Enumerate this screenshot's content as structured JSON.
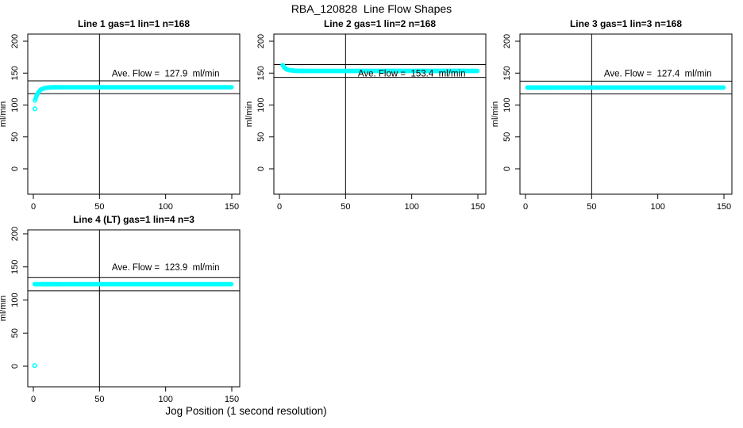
{
  "figure": {
    "title": "RBA_120828  Line Flow Shapes",
    "xlabel": "Jog Position (1 second resolution)",
    "background": "#ffffff",
    "axis_color": "#000000",
    "point_color": "#00ffff"
  },
  "chart_data": {
    "type": "scatter",
    "title": "RBA_120828  Line Flow Shapes",
    "xlabel": "Jog Position (1 second resolution)",
    "ylabel": "ml/min",
    "x_ticks": [
      0,
      50,
      100,
      150
    ],
    "y_ticks": [
      0,
      50,
      100,
      150,
      200
    ],
    "xlim": [
      0,
      150
    ],
    "ylim": [
      0,
      200
    ],
    "grid": false,
    "marker": "open-circle",
    "marker_color": "#00ffff",
    "vline_x": 50,
    "panels": [
      {
        "title": "Line 1 gas=1 lin=1 n=168",
        "n": 168,
        "ave_flow": 127.9,
        "annotation": "Ave. Flow =  127.9  ml/min",
        "annotation_at": [
          100,
          150
        ],
        "ref_lines_y": [
          137.9,
          117.9
        ],
        "profile": [
          [
            1.2,
            107
          ],
          [
            2,
            112
          ],
          [
            3,
            117
          ],
          [
            4,
            120.5
          ],
          [
            5,
            123
          ],
          [
            6,
            124.5
          ],
          [
            8,
            126.2
          ],
          [
            10,
            127
          ],
          [
            13,
            127.6
          ],
          [
            16,
            127.9
          ],
          [
            150,
            127.9
          ]
        ],
        "outlier_points": [
          [
            1.2,
            94
          ]
        ]
      },
      {
        "title": "Line 2 gas=1 lin=2 n=168",
        "n": 168,
        "ave_flow": 153.4,
        "annotation": "Ave. Flow =  153.4  ml/min",
        "annotation_at": [
          100,
          150
        ],
        "ref_lines_y": [
          163.4,
          143.4
        ],
        "profile": [
          [
            2.5,
            162.5
          ],
          [
            4,
            158
          ],
          [
            6,
            155.5
          ],
          [
            8,
            154.5
          ],
          [
            10,
            154
          ],
          [
            13,
            153.6
          ],
          [
            16,
            153.4
          ],
          [
            150,
            153.4
          ]
        ],
        "outlier_points": []
      },
      {
        "title": "Line 3 gas=1 lin=3 n=168",
        "n": 168,
        "ave_flow": 127.4,
        "annotation": "Ave. Flow =  127.4  ml/min",
        "annotation_at": [
          100,
          150
        ],
        "ref_lines_y": [
          137.4,
          117.4
        ],
        "profile": [
          [
            1.5,
            127.4
          ],
          [
            150,
            127.4
          ]
        ],
        "outlier_points": []
      },
      {
        "title": "Line 4 (LT) gas=1 lin=4 n=3",
        "n": 3,
        "ave_flow": 123.9,
        "annotation": "Ave. Flow =  123.9  ml/min",
        "annotation_at": [
          100,
          150
        ],
        "ref_lines_y": [
          133.9,
          113.9
        ],
        "profile": [
          [
            1,
            123.9
          ],
          [
            150,
            123.9
          ]
        ],
        "outlier_points": [
          [
            1,
            1
          ]
        ]
      }
    ]
  }
}
